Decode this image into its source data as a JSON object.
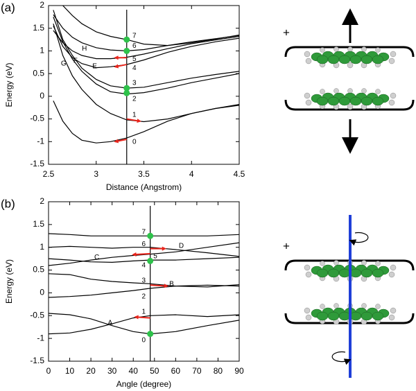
{
  "chart_data": [
    {
      "type": "line",
      "label": "(a)",
      "x_label": "Distance (Angstrom)",
      "y_label": "Energy (eV)",
      "xlim": [
        2.5,
        4.5
      ],
      "ylim": [
        -1.5,
        2
      ],
      "xticks": [
        2.5,
        3,
        3.5,
        4,
        4.5
      ],
      "yticks": [
        -1.5,
        -1,
        -0.5,
        0,
        0.5,
        1,
        1.5,
        2
      ],
      "x": [
        2.55,
        2.65,
        2.75,
        2.85,
        3.0,
        3.15,
        3.32,
        3.5,
        3.75,
        4.0,
        4.25,
        4.5
      ],
      "series": [
        {
          "color": "#000000",
          "values": [
            -0.1,
            -0.55,
            -0.82,
            -0.97,
            -1.03,
            -1.0,
            -0.92,
            -0.78,
            -0.55,
            -0.38,
            -0.27,
            -0.2
          ]
        },
        {
          "color": "#000000",
          "values": [
            1.6,
            0.9,
            0.45,
            0.15,
            -0.18,
            -0.38,
            -0.52,
            -0.56,
            -0.5,
            -0.38,
            -0.27,
            -0.18
          ]
        },
        {
          "color": "#000000",
          "values": [
            1.75,
            1.2,
            0.82,
            0.55,
            0.27,
            0.1,
            0.05,
            0.08,
            0.18,
            0.3,
            0.4,
            0.5
          ]
        },
        {
          "color": "#000000",
          "values": [
            1.9,
            1.25,
            0.9,
            0.62,
            0.37,
            0.23,
            0.18,
            0.2,
            0.3,
            0.4,
            0.48,
            0.55
          ]
        },
        {
          "color": "#000000",
          "values": [
            1.55,
            1.1,
            0.85,
            0.72,
            0.63,
            0.65,
            0.7,
            0.8,
            0.97,
            1.1,
            1.2,
            1.28
          ]
        },
        {
          "color": "#000000",
          "values": [
            1.45,
            1.18,
            1.0,
            0.9,
            0.83,
            0.83,
            0.86,
            0.93,
            1.05,
            1.16,
            1.24,
            1.32
          ]
        },
        {
          "color": "#000000",
          "values": [
            1.8,
            1.5,
            1.3,
            1.18,
            1.07,
            1.02,
            1.0,
            1.03,
            1.12,
            1.2,
            1.27,
            1.34
          ]
        },
        {
          "color": "#000000",
          "values": [
            null,
            2.0,
            1.78,
            1.6,
            1.42,
            1.32,
            1.25,
            1.15,
            1.12,
            1.18,
            1.26,
            1.35
          ]
        }
      ],
      "vline": 3.32,
      "points": [
        {
          "x": 3.32,
          "y": 1.25
        },
        {
          "x": 3.32,
          "y": 1.0
        },
        {
          "x": 3.32,
          "y": 0.18
        },
        {
          "x": 3.32,
          "y": 0.07
        }
      ],
      "point_color": "#2ec24a",
      "arrows": [
        {
          "x1": 3.32,
          "y1": 0.85,
          "x2": 3.2,
          "y2": 0.85
        },
        {
          "x1": 3.32,
          "y1": 0.7,
          "x2": 3.2,
          "y2": 0.65
        },
        {
          "x1": 3.32,
          "y1": -0.5,
          "x2": 3.46,
          "y2": -0.55
        },
        {
          "x1": 3.32,
          "y1": -0.95,
          "x2": 3.2,
          "y2": -1.0
        }
      ],
      "arrow_color": "#e8251c",
      "annotations": [
        {
          "text": "7",
          "x": 3.38,
          "y": 1.33
        },
        {
          "text": "6",
          "x": 3.38,
          "y": 1.11
        },
        {
          "text": "5",
          "x": 3.38,
          "y": 0.82
        },
        {
          "text": "4",
          "x": 3.38,
          "y": 0.62
        },
        {
          "text": "3",
          "x": 3.38,
          "y": 0.29
        },
        {
          "text": "2",
          "x": 3.38,
          "y": -0.06
        },
        {
          "text": "1",
          "x": 3.38,
          "y": -0.41
        },
        {
          "text": "0",
          "x": 3.38,
          "y": -1.01
        },
        {
          "text": "H",
          "x": 2.85,
          "y": 1.05
        },
        {
          "text": "G",
          "x": 2.63,
          "y": 0.72
        },
        {
          "text": "F",
          "x": 2.76,
          "y": 0.78
        },
        {
          "text": "E",
          "x": 2.96,
          "y": 0.66
        }
      ]
    },
    {
      "type": "line",
      "label": "(b)",
      "x_label": "Angle (degree)",
      "y_label": "Energy (eV)",
      "xlim": [
        0,
        90
      ],
      "ylim": [
        -1.5,
        2
      ],
      "xticks": [
        0,
        10,
        20,
        30,
        40,
        50,
        60,
        70,
        80,
        90
      ],
      "yticks": [
        -1.5,
        -1,
        -0.5,
        0,
        0.5,
        1,
        1.5,
        2
      ],
      "x": [
        0,
        10,
        20,
        30,
        40,
        48,
        60,
        75,
        90
      ],
      "series": [
        {
          "color": "#000000",
          "values": [
            -0.45,
            -0.48,
            -0.57,
            -0.72,
            -0.85,
            -0.9,
            -0.85,
            -0.72,
            -0.6
          ]
        },
        {
          "color": "#000000",
          "values": [
            -0.9,
            -0.88,
            -0.8,
            -0.68,
            -0.55,
            -0.5,
            -0.48,
            -0.52,
            -0.48
          ]
        },
        {
          "color": "#000000",
          "values": [
            -0.1,
            -0.08,
            -0.05,
            0.0,
            0.05,
            0.1,
            0.15,
            0.17,
            0.15
          ]
        },
        {
          "color": "#000000",
          "values": [
            0.42,
            0.4,
            0.3,
            0.25,
            0.22,
            0.2,
            0.15,
            0.13,
            0.18
          ]
        },
        {
          "color": "#000000",
          "values": [
            0.75,
            0.72,
            0.68,
            0.67,
            0.7,
            0.72,
            0.72,
            0.75,
            0.78
          ]
        },
        {
          "color": "#000000",
          "values": [
            0.6,
            0.65,
            0.72,
            0.78,
            0.82,
            0.85,
            0.9,
            1.0,
            1.1
          ]
        },
        {
          "color": "#000000",
          "values": [
            1.0,
            1.02,
            1.0,
            0.98,
            1.0,
            1.0,
            0.95,
            0.88,
            0.8
          ]
        },
        {
          "color": "#000000",
          "values": [
            1.3,
            1.28,
            1.25,
            1.25,
            1.25,
            1.25,
            1.25,
            1.25,
            1.28
          ]
        }
      ],
      "vline": 48,
      "points": [
        {
          "x": 48,
          "y": 1.25
        },
        {
          "x": 48,
          "y": 0.7
        },
        {
          "x": 48,
          "y": -0.9
        }
      ],
      "point_color": "#2ec24a",
      "arrows": [
        {
          "x1": 48,
          "y1": 0.97,
          "x2": 55,
          "y2": 0.97
        },
        {
          "x1": 48,
          "y1": 0.86,
          "x2": 40,
          "y2": 0.84
        },
        {
          "x1": 48,
          "y1": 0.17,
          "x2": 56,
          "y2": 0.15
        },
        {
          "x1": 48,
          "y1": -0.55,
          "x2": 41,
          "y2": -0.53
        }
      ],
      "arrow_color": "#e8251c",
      "annotations": [
        {
          "text": "7",
          "x": 44,
          "y": 1.33
        },
        {
          "text": "6",
          "x": 44,
          "y": 1.07
        },
        {
          "text": "5",
          "x": 49.5,
          "y": 0.8
        },
        {
          "text": "4",
          "x": 44,
          "y": 0.6
        },
        {
          "text": "3",
          "x": 44,
          "y": 0.27
        },
        {
          "text": "2",
          "x": 44,
          "y": -0.08
        },
        {
          "text": "1",
          "x": 44,
          "y": -0.42
        },
        {
          "text": "0",
          "x": 44,
          "y": -1.04
        },
        {
          "text": "A",
          "x": 28,
          "y": -0.66
        },
        {
          "text": "B",
          "x": 57,
          "y": 0.19
        },
        {
          "text": "C",
          "x": 21.6,
          "y": 0.78
        },
        {
          "text": "D",
          "x": 61.5,
          "y": 1.03
        }
      ]
    }
  ],
  "illustrations": [
    {
      "sign": "+"
    },
    {
      "sign": "+"
    }
  ]
}
